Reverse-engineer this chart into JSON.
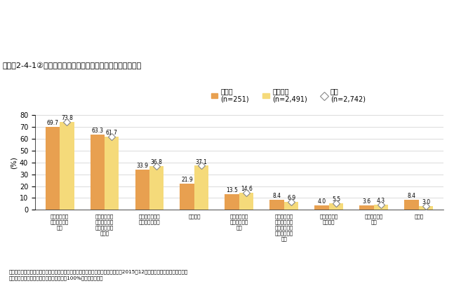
{
  "title": "コラム2-4-1②図　企業規模別に見た新事業展開における課題",
  "categories": [
    "新事業展開を\n担当する人材\n不足",
    "新事業展開に\nあたってのス\nキル・ノウハ\nウ不足",
    "新事業展開後の\n顧客・販路確保",
    "資金調達",
    "既存事業との\n相乗効果に乏\nしい",
    "社内で慎重な\n検討が行われ\nない、慎重な\n意見が通りに\nくい",
    "協業先がみつ\nからない",
    "相談相手がい\nない",
    "その他"
  ],
  "large_color": "#E8A050",
  "sme_color": "#F5DA7A",
  "ylabel": "(%)",
  "ylim": [
    0,
    80
  ],
  "yticks": [
    0,
    10,
    20,
    30,
    40,
    50,
    60,
    70,
    80
  ],
  "source": "資料：中小企業庁委託「中小企業のリスクマネジメントへの取組に関する調査」（2015年12月、みずほ総合研究所（株））",
  "note": "（注）　複数回答のため、合計は必ずしも100%にはならない。",
  "bar_width": 0.32,
  "large_values": [
    69.7,
    63.3,
    33.9,
    21.9,
    13.5,
    8.4,
    4.0,
    3.6,
    8.4
  ],
  "sme_values": [
    73.8,
    61.7,
    36.8,
    37.1,
    14.6,
    6.9,
    5.5,
    4.3,
    3.0
  ],
  "whole_values": [
    73.8,
    61.7,
    36.8,
    37.1,
    14.6,
    6.9,
    5.5,
    4.3,
    3.0
  ],
  "legend_large": "大企業",
  "legend_large_n": "(n=251)",
  "legend_sme": "中小企業",
  "legend_sme_n": "(n=2,491)",
  "legend_whole": "全体",
  "legend_whole_n": "(n=2,742)"
}
